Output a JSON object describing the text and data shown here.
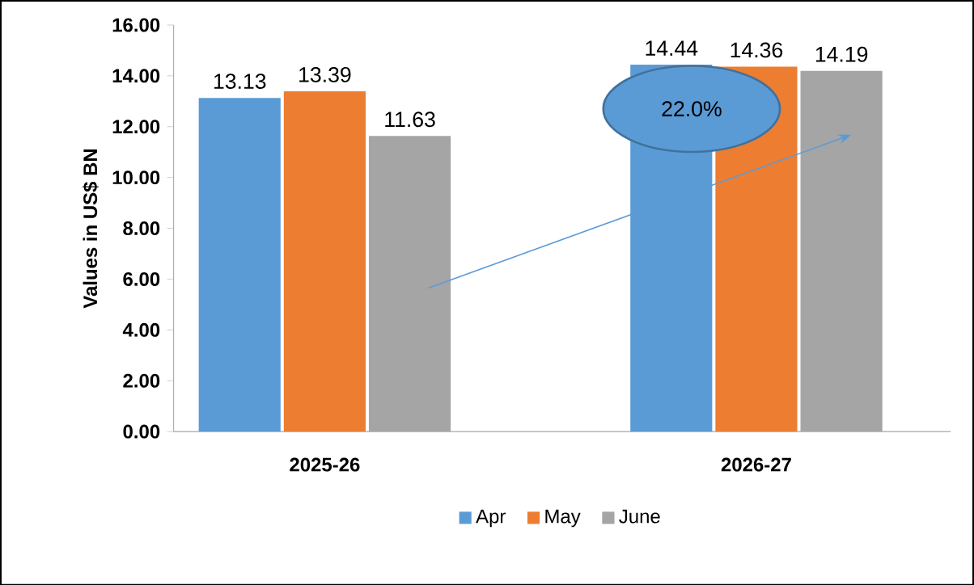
{
  "chart_data": {
    "type": "bar",
    "ylabel": "Values in US$ BN",
    "categories": [
      "2025-26",
      "2026-27"
    ],
    "series": [
      {
        "name": "Apr",
        "color": "#5b9bd5",
        "values": [
          13.13,
          14.44
        ]
      },
      {
        "name": "May",
        "color": "#ed7d31",
        "values": [
          13.39,
          14.36
        ]
      },
      {
        "name": "June",
        "color": "#a5a5a5",
        "values": [
          11.63,
          14.19
        ]
      }
    ],
    "ylim": [
      0,
      16
    ],
    "yticks": [
      {
        "value": 0,
        "label": "0.00"
      },
      {
        "value": 2,
        "label": "2.00"
      },
      {
        "value": 4,
        "label": "4.00"
      },
      {
        "value": 6,
        "label": "6.00"
      },
      {
        "value": 8,
        "label": "8.00"
      },
      {
        "value": 10,
        "label": "10.00"
      },
      {
        "value": 12,
        "label": "12.00"
      },
      {
        "value": 14,
        "label": "14.00"
      },
      {
        "value": 16,
        "label": "16.00"
      }
    ],
    "data_labels": true,
    "legend": "bottom",
    "grid": false,
    "annotations": [
      "22.0%"
    ]
  }
}
